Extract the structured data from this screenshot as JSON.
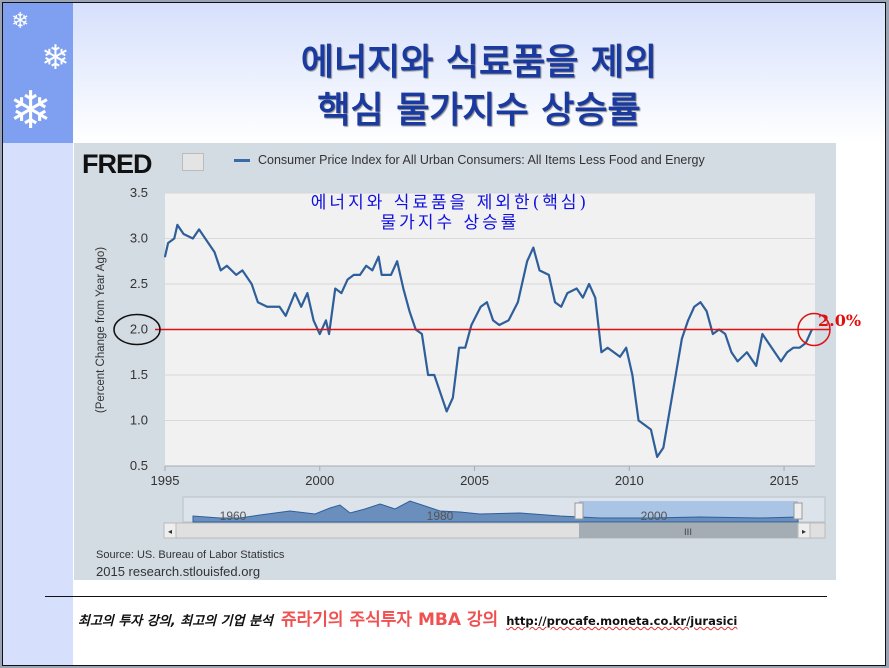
{
  "slide": {
    "title_line1": "에너지와 식료품을 제외",
    "title_line2": "핵심 물가지수 상승률"
  },
  "footer": {
    "tagline": "최고의 투자 강의, 최고의 기업 분석",
    "brand": "쥬라기의 주식투자 MBA 강의",
    "url": "http://procafe.moneta.co.kr/jurasici"
  },
  "fred": {
    "logo": "FRED",
    "source": "Source: US. Bureau of Labor Statistics",
    "copyright": "2015 research.stlouisfed.org"
  },
  "annotation": {
    "line1": "에너지와 식료품을 제외한(핵심)",
    "line2": "물가지수 상승률",
    "target_label": "2.0%"
  },
  "navigator": {
    "labels": [
      "1960",
      "1980",
      "2000"
    ],
    "handle_grip": "III"
  },
  "colors": {
    "line": "#2e5f9a",
    "target": "#e01010",
    "title": "#1a3aa0"
  },
  "chart_data": {
    "type": "line",
    "title": "",
    "legend": "Consumer Price Index for All Urban Consumers: All Items Less Food and Energy",
    "legend_position": "top",
    "xlabel": "",
    "ylabel": "(Percent Change from Year Ago)",
    "xlim": [
      1995,
      2016
    ],
    "ylim": [
      0.5,
      3.5
    ],
    "xticks": [
      "1995",
      "2000",
      "2005",
      "2010",
      "2015"
    ],
    "yticks": [
      "0.5",
      "1.0",
      "1.5",
      "2.0",
      "2.5",
      "3.0",
      "3.5"
    ],
    "reference_line": 2.0,
    "x": [
      1995.0,
      1995.1,
      1995.3,
      1995.4,
      1995.6,
      1995.9,
      1996.1,
      1996.3,
      1996.6,
      1996.8,
      1997.0,
      1997.3,
      1997.5,
      1997.8,
      1998.0,
      1998.3,
      1998.7,
      1998.9,
      1999.2,
      1999.4,
      1999.6,
      1999.8,
      2000.0,
      2000.2,
      2000.3,
      2000.5,
      2000.7,
      2000.9,
      2001.1,
      2001.3,
      2001.5,
      2001.7,
      2001.9,
      2002.0,
      2002.3,
      2002.5,
      2002.7,
      2002.9,
      2003.1,
      2003.3,
      2003.5,
      2003.7,
      2003.9,
      2004.1,
      2004.3,
      2004.5,
      2004.7,
      2004.9,
      2005.2,
      2005.4,
      2005.6,
      2005.8,
      2006.1,
      2006.4,
      2006.7,
      2006.9,
      2007.1,
      2007.4,
      2007.6,
      2007.8,
      2008.0,
      2008.3,
      2008.5,
      2008.7,
      2008.9,
      2009.1,
      2009.3,
      2009.5,
      2009.7,
      2009.9,
      2010.1,
      2010.3,
      2010.5,
      2010.7,
      2010.9,
      2011.1,
      2011.3,
      2011.5,
      2011.7,
      2011.9,
      2012.1,
      2012.3,
      2012.5,
      2012.7,
      2012.9,
      2013.1,
      2013.3,
      2013.5,
      2013.8,
      2014.1,
      2014.3,
      2014.5,
      2014.7,
      2014.9,
      2015.1,
      2015.3,
      2015.5,
      2015.7,
      2015.9
    ],
    "y": [
      2.8,
      2.95,
      3.0,
      3.15,
      3.05,
      3.0,
      3.1,
      3.0,
      2.85,
      2.65,
      2.7,
      2.6,
      2.65,
      2.5,
      2.3,
      2.25,
      2.25,
      2.15,
      2.4,
      2.25,
      2.4,
      2.1,
      1.95,
      2.1,
      1.95,
      2.45,
      2.4,
      2.55,
      2.6,
      2.6,
      2.7,
      2.65,
      2.8,
      2.6,
      2.6,
      2.75,
      2.45,
      2.2,
      2.0,
      1.95,
      1.5,
      1.5,
      1.3,
      1.1,
      1.25,
      1.8,
      1.8,
      2.05,
      2.25,
      2.3,
      2.1,
      2.05,
      2.1,
      2.3,
      2.75,
      2.9,
      2.65,
      2.6,
      2.3,
      2.25,
      2.4,
      2.45,
      2.35,
      2.5,
      2.35,
      1.75,
      1.8,
      1.75,
      1.7,
      1.8,
      1.5,
      1.0,
      0.95,
      0.9,
      0.6,
      0.7,
      1.1,
      1.5,
      1.9,
      2.1,
      2.25,
      2.3,
      2.2,
      1.95,
      2.0,
      1.95,
      1.75,
      1.65,
      1.75,
      1.6,
      1.95,
      1.85,
      1.75,
      1.65,
      1.75,
      1.8,
      1.8,
      1.85,
      2.0
    ]
  }
}
